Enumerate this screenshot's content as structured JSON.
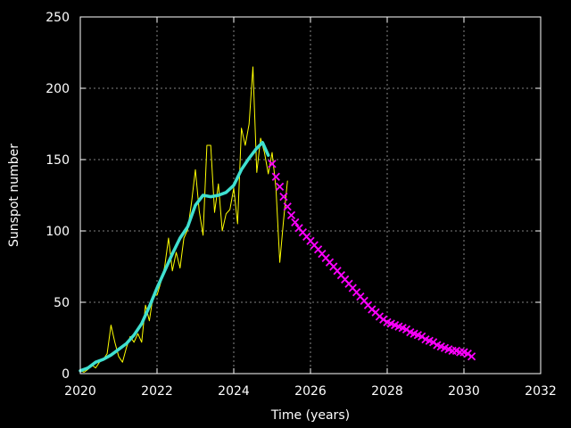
{
  "chart_data": {
    "type": "line",
    "title": "",
    "xlabel": "Time (years)",
    "ylabel": "Sunspot number",
    "xlim": [
      2020,
      2032
    ],
    "ylim": [
      0,
      250
    ],
    "x_ticks": [
      2020,
      2022,
      2024,
      2026,
      2028,
      2030,
      2032
    ],
    "y_ticks": [
      0,
      50,
      100,
      150,
      200,
      250
    ],
    "grid": true,
    "legend": "none",
    "series": [
      {
        "style": "thin-line",
        "color": "#ffff00",
        "x": [
          2020.0,
          2020.1,
          2020.2,
          2020.3,
          2020.4,
          2020.5,
          2020.6,
          2020.7,
          2020.8,
          2020.9,
          2021.0,
          2021.1,
          2021.2,
          2021.3,
          2021.4,
          2021.5,
          2021.6,
          2021.7,
          2021.8,
          2021.9,
          2022.0,
          2022.1,
          2022.2,
          2022.3,
          2022.4,
          2022.5,
          2022.6,
          2022.7,
          2022.8,
          2022.9,
          2023.0,
          2023.1,
          2023.2,
          2023.3,
          2023.4,
          2023.5,
          2023.6,
          2023.7,
          2023.8,
          2023.9,
          2024.0,
          2024.1,
          2024.2,
          2024.3,
          2024.4,
          2024.5,
          2024.6,
          2024.7,
          2024.8,
          2024.9,
          2025.0,
          2025.1,
          2025.2,
          2025.3,
          2025.4
        ],
        "values": [
          2,
          1,
          3,
          6,
          4,
          8,
          10,
          14,
          34,
          22,
          12,
          8,
          18,
          26,
          22,
          28,
          22,
          48,
          37,
          55,
          55,
          64,
          75,
          95,
          72,
          85,
          74,
          95,
          101,
          120,
          143,
          114,
          97,
          160,
          160,
          113,
          133,
          100,
          112,
          115,
          130,
          105,
          172,
          160,
          175,
          215,
          141,
          165,
          155,
          140,
          155,
          130,
          78,
          108,
          135
        ]
      },
      {
        "style": "thick-line",
        "color": "#3fe0d0",
        "x": [
          2020.0,
          2020.2,
          2020.4,
          2020.6,
          2020.8,
          2021.0,
          2021.2,
          2021.4,
          2021.6,
          2021.8,
          2022.0,
          2022.2,
          2022.4,
          2022.6,
          2022.8,
          2023.0,
          2023.2,
          2023.4,
          2023.6,
          2023.8,
          2024.0,
          2024.2,
          2024.4,
          2024.6,
          2024.75,
          2024.9
        ],
        "values": [
          2,
          4,
          8,
          10,
          13,
          17,
          21,
          27,
          35,
          47,
          60,
          72,
          84,
          95,
          103,
          118,
          125,
          124,
          125,
          127,
          132,
          143,
          151,
          158,
          162,
          153
        ]
      },
      {
        "style": "markers-x",
        "color": "#ff00ff",
        "x": [
          2025.0,
          2025.1,
          2025.2,
          2025.3,
          2025.4,
          2025.5,
          2025.6,
          2025.7,
          2025.8,
          2025.9,
          2026.0,
          2026.1,
          2026.2,
          2026.3,
          2026.4,
          2026.5,
          2026.6,
          2026.7,
          2026.8,
          2026.9,
          2027.0,
          2027.1,
          2027.2,
          2027.3,
          2027.4,
          2027.5,
          2027.6,
          2027.7,
          2027.8,
          2027.9,
          2028.0,
          2028.1,
          2028.2,
          2028.3,
          2028.4,
          2028.5,
          2028.6,
          2028.7,
          2028.8,
          2028.9,
          2029.0,
          2029.1,
          2029.2,
          2029.3,
          2029.4,
          2029.5,
          2029.6,
          2029.7,
          2029.8,
          2029.9,
          2030.0,
          2030.1,
          2030.2
        ],
        "values": [
          147,
          138,
          131,
          124,
          117,
          111,
          106,
          102,
          99,
          96,
          93,
          90,
          87,
          84,
          81,
          78,
          75,
          72,
          69,
          66,
          63,
          60,
          57,
          54,
          51,
          48,
          45,
          43,
          40,
          38,
          36,
          35,
          34,
          33,
          32,
          31,
          29,
          28,
          27,
          26,
          24,
          23,
          22,
          20,
          19,
          18,
          17,
          16,
          16,
          15,
          15,
          14,
          12
        ]
      }
    ]
  }
}
